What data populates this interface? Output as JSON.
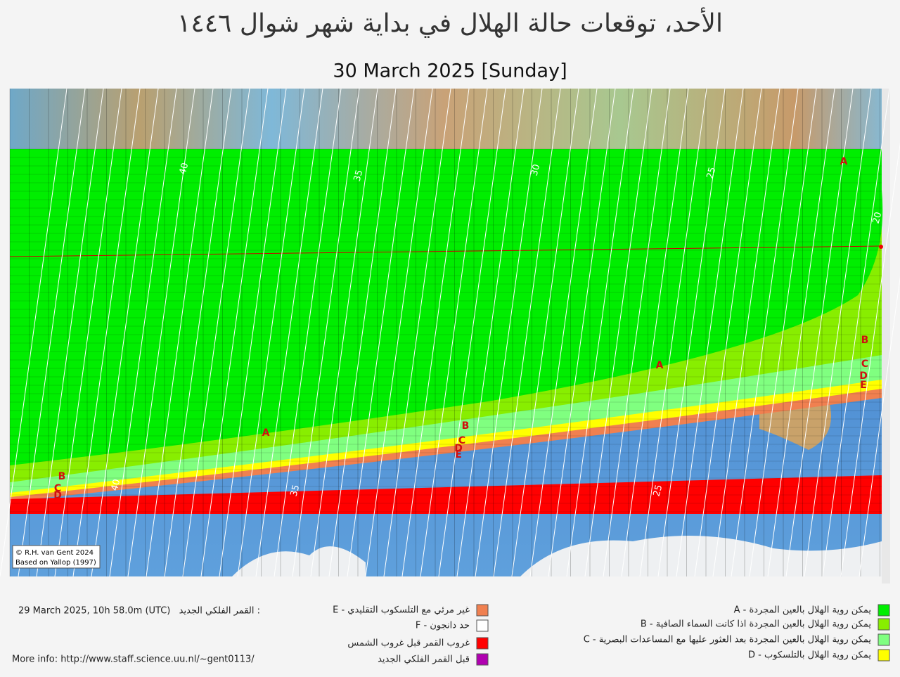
{
  "header": {
    "title": "الأحد، توقعات حالة الهلال في بداية شهر شوال ١٤٤٦",
    "date": "30  March 2025 [Sunday]"
  },
  "map": {
    "credit": [
      "© R.H. van Gent 2024",
      "Based on Yallop (1997)"
    ],
    "contour_labels": [
      "40",
      "35",
      "30",
      "25",
      "20",
      "40",
      "35",
      "25"
    ],
    "zone_labels": [
      "A",
      "A",
      "A",
      "B",
      "B",
      "B",
      "C",
      "C",
      "C",
      "D",
      "D",
      "D",
      "E",
      "E"
    ]
  },
  "legend": {
    "items": [
      {
        "text": "A - يمكن روية الهلال بالعين المجردة",
        "color": "#00ee00"
      },
      {
        "text": "B - يمكن روية الهلال بالعين المجردة اذا كانت السماء الصافية",
        "color": "#88ee00"
      },
      {
        "text": "C - يمكن روية الهلال بالعين المجردة بعد العثور عليها مع المساعدات البصرية",
        "color": "#80ff80"
      },
      {
        "text": "D - يمكن روية الهلال بالتلسكوب",
        "color": "#ffff00"
      },
      {
        "text": "E - غير مرئي مع التلسكوب التقليدي",
        "color": "#f08050"
      },
      {
        "text": "F - حد دانجون",
        "color": "#ffffff"
      },
      {
        "text": "غروب القمر قبل غروب الشمس",
        "color": "#ff0000"
      },
      {
        "text": "قبل القمر  الفلكي الجديد",
        "color": "#b000b0"
      }
    ]
  },
  "new_moon": {
    "label": "القمر الفلكي الجديد :",
    "value": "29 March 2025, 10h 58.0m (UTC)"
  },
  "more_info": "More info: http://www.staff.science.uu.nl/~gent0113/"
}
